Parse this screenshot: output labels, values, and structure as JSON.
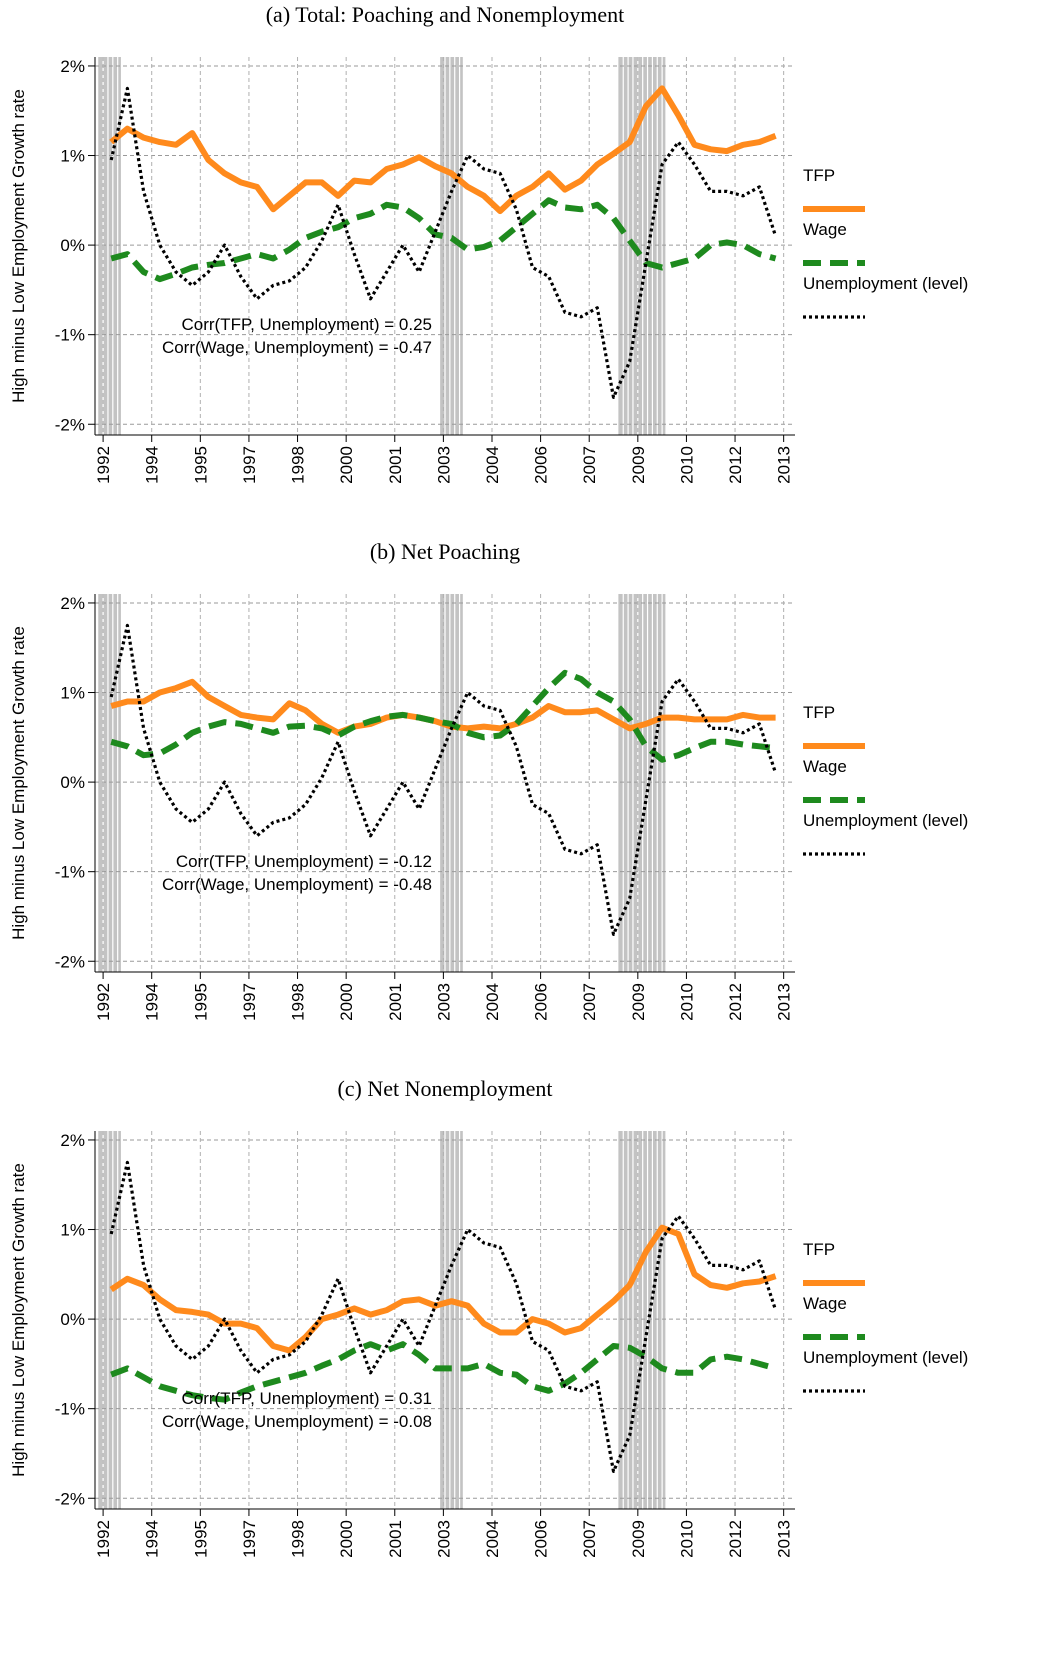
{
  "chart_data": [
    {
      "type": "line",
      "title": "(a) Total: Poaching and Nonemployment",
      "ylabel": "High minus Low Employment Growth rate",
      "x": [
        1992.25,
        1992.75,
        1993.25,
        1993.75,
        1994.25,
        1994.75,
        1995.25,
        1995.75,
        1996.25,
        1996.75,
        1997.25,
        1997.75,
        1998.25,
        1998.75,
        1999.25,
        1999.75,
        2000.25,
        2000.75,
        2001.25,
        2001.75,
        2002.25,
        2002.75,
        2003.25,
        2003.75,
        2004.25,
        2004.75,
        2005.25,
        2005.75,
        2006.25,
        2006.75,
        2007.25,
        2007.75,
        2008.25,
        2008.75,
        2009.25,
        2009.75,
        2010.25,
        2010.75,
        2011.25,
        2011.75,
        2012.25,
        2012.75
      ],
      "series": [
        {
          "name": "TFP",
          "color": "#ff8a1c",
          "style": "solid",
          "values": [
            1.15,
            1.3,
            1.2,
            1.15,
            1.12,
            1.25,
            0.95,
            0.8,
            0.7,
            0.65,
            0.4,
            0.55,
            0.7,
            0.7,
            0.55,
            0.72,
            0.7,
            0.85,
            0.9,
            0.98,
            0.88,
            0.8,
            0.65,
            0.55,
            0.38,
            0.55,
            0.65,
            0.8,
            0.62,
            0.72,
            0.9,
            1.02,
            1.15,
            1.55,
            1.75,
            1.45,
            1.12,
            1.07,
            1.05,
            1.12,
            1.15,
            1.22
          ]
        },
        {
          "name": "Wage",
          "color": "#1e8a1e",
          "style": "dashed",
          "values": [
            -0.15,
            -0.1,
            -0.3,
            -0.38,
            -0.32,
            -0.25,
            -0.22,
            -0.2,
            -0.15,
            -0.1,
            -0.15,
            -0.05,
            0.08,
            0.15,
            0.2,
            0.3,
            0.35,
            0.45,
            0.42,
            0.3,
            0.12,
            0.08,
            -0.05,
            -0.02,
            0.05,
            0.2,
            0.35,
            0.5,
            0.42,
            0.4,
            0.45,
            0.3,
            0.05,
            -0.2,
            -0.25,
            -0.2,
            -0.15,
            0.0,
            0.03,
            0.0,
            -0.1,
            -0.15
          ]
        },
        {
          "name": "Unemployment (level)",
          "color": "#000000",
          "style": "dotted",
          "values": [
            0.95,
            1.75,
            0.6,
            0.0,
            -0.3,
            -0.45,
            -0.3,
            0.0,
            -0.35,
            -0.6,
            -0.45,
            -0.4,
            -0.25,
            0.05,
            0.45,
            -0.1,
            -0.6,
            -0.3,
            0.0,
            -0.3,
            0.15,
            0.6,
            1.0,
            0.85,
            0.8,
            0.4,
            -0.25,
            -0.35,
            -0.75,
            -0.8,
            -0.7,
            -1.7,
            -1.3,
            -0.2,
            0.9,
            1.15,
            0.9,
            0.6,
            0.6,
            0.55,
            0.65,
            0.1
          ]
        }
      ],
      "annotations": [
        "Corr(TFP, Unemployment) = 0.25",
        "Corr(Wage, Unemployment) = -0.47"
      ],
      "shaded": [
        [
          1991.85,
          1992.55
        ],
        [
          2002.4,
          2003.1
        ],
        [
          2007.9,
          2009.35
        ]
      ],
      "xlim": [
        1991.75,
        2013.35
      ],
      "ylim": [
        -2.12,
        2.1
      ],
      "xticks": [
        1992,
        {
          "value": 1993.5,
          "label": "1994"
        },
        1995,
        {
          "value": 1996.5,
          "label": "1997"
        },
        1998,
        {
          "value": 1999.5,
          "label": "2000"
        },
        2001,
        {
          "value": 2002.5,
          "label": "2003"
        },
        2004,
        {
          "value": 2005.5,
          "label": "2006"
        },
        2007,
        {
          "value": 2008.5,
          "label": "2009"
        },
        2010,
        {
          "value": 2011.5,
          "label": "2012"
        },
        2013
      ],
      "yticks": [
        {
          "value": -2,
          "label": "-2%"
        },
        {
          "value": -1,
          "label": "-1%"
        },
        {
          "value": 0,
          "label": "0%"
        },
        {
          "value": 1,
          "label": "1%"
        },
        {
          "value": 2,
          "label": "2%"
        }
      ],
      "grid": true,
      "legend": "right"
    },
    {
      "type": "line",
      "title": "(b) Net Poaching",
      "ylabel": "High minus Low Employment Growth rate",
      "x": [
        1992.25,
        1992.75,
        1993.25,
        1993.75,
        1994.25,
        1994.75,
        1995.25,
        1995.75,
        1996.25,
        1996.75,
        1997.25,
        1997.75,
        1998.25,
        1998.75,
        1999.25,
        1999.75,
        2000.25,
        2000.75,
        2001.25,
        2001.75,
        2002.25,
        2002.75,
        2003.25,
        2003.75,
        2004.25,
        2004.75,
        2005.25,
        2005.75,
        2006.25,
        2006.75,
        2007.25,
        2007.75,
        2008.25,
        2008.75,
        2009.25,
        2009.75,
        2010.25,
        2010.75,
        2011.25,
        2011.75,
        2012.25,
        2012.75
      ],
      "series": [
        {
          "name": "TFP",
          "color": "#ff8a1c",
          "style": "solid",
          "values": [
            0.85,
            0.9,
            0.9,
            1.0,
            1.05,
            1.12,
            0.95,
            0.85,
            0.75,
            0.72,
            0.7,
            0.88,
            0.8,
            0.65,
            0.55,
            0.62,
            0.65,
            0.72,
            0.75,
            0.72,
            0.68,
            0.62,
            0.6,
            0.62,
            0.6,
            0.65,
            0.72,
            0.85,
            0.78,
            0.78,
            0.8,
            0.7,
            0.6,
            0.65,
            0.72,
            0.72,
            0.7,
            0.7,
            0.7,
            0.75,
            0.72,
            0.72
          ]
        },
        {
          "name": "Wage",
          "color": "#1e8a1e",
          "style": "dashed",
          "values": [
            0.45,
            0.4,
            0.3,
            0.32,
            0.42,
            0.55,
            0.62,
            0.67,
            0.65,
            0.6,
            0.55,
            0.62,
            0.63,
            0.6,
            0.52,
            0.62,
            0.68,
            0.73,
            0.75,
            0.72,
            0.68,
            0.65,
            0.55,
            0.5,
            0.52,
            0.65,
            0.85,
            1.05,
            1.22,
            1.15,
            1.0,
            0.9,
            0.7,
            0.4,
            0.25,
            0.3,
            0.38,
            0.45,
            0.45,
            0.42,
            0.4,
            0.38
          ]
        },
        {
          "name": "Unemployment (level)",
          "color": "#000000",
          "style": "dotted",
          "values": [
            0.95,
            1.75,
            0.6,
            0.0,
            -0.3,
            -0.45,
            -0.3,
            0.0,
            -0.35,
            -0.6,
            -0.45,
            -0.4,
            -0.25,
            0.05,
            0.45,
            -0.1,
            -0.6,
            -0.3,
            0.0,
            -0.3,
            0.15,
            0.6,
            1.0,
            0.85,
            0.8,
            0.4,
            -0.25,
            -0.35,
            -0.75,
            -0.8,
            -0.7,
            -1.7,
            -1.3,
            -0.2,
            0.9,
            1.15,
            0.9,
            0.6,
            0.6,
            0.55,
            0.65,
            0.1
          ]
        }
      ],
      "annotations": [
        "Corr(TFP, Unemployment) = -0.12",
        "Corr(Wage, Unemployment) = -0.48"
      ],
      "shaded": [
        [
          1991.85,
          1992.55
        ],
        [
          2002.4,
          2003.1
        ],
        [
          2007.9,
          2009.35
        ]
      ],
      "xlim": [
        1991.75,
        2013.35
      ],
      "ylim": [
        -2.12,
        2.1
      ],
      "xticks": [
        1992,
        {
          "value": 1993.5,
          "label": "1994"
        },
        1995,
        {
          "value": 1996.5,
          "label": "1997"
        },
        1998,
        {
          "value": 1999.5,
          "label": "2000"
        },
        2001,
        {
          "value": 2002.5,
          "label": "2003"
        },
        2004,
        {
          "value": 2005.5,
          "label": "2006"
        },
        2007,
        {
          "value": 2008.5,
          "label": "2009"
        },
        2010,
        {
          "value": 2011.5,
          "label": "2012"
        },
        2013
      ],
      "yticks": [
        {
          "value": -2,
          "label": "-2%"
        },
        {
          "value": -1,
          "label": "-1%"
        },
        {
          "value": 0,
          "label": "0%"
        },
        {
          "value": 1,
          "label": "1%"
        },
        {
          "value": 2,
          "label": "2%"
        }
      ],
      "grid": true,
      "legend": "right"
    },
    {
      "type": "line",
      "title": "(c) Net Nonemployment",
      "ylabel": "High minus Low Employment Growth rate",
      "x": [
        1992.25,
        1992.75,
        1993.25,
        1993.75,
        1994.25,
        1994.75,
        1995.25,
        1995.75,
        1996.25,
        1996.75,
        1997.25,
        1997.75,
        1998.25,
        1998.75,
        1999.25,
        1999.75,
        2000.25,
        2000.75,
        2001.25,
        2001.75,
        2002.25,
        2002.75,
        2003.25,
        2003.75,
        2004.25,
        2004.75,
        2005.25,
        2005.75,
        2006.25,
        2006.75,
        2007.25,
        2007.75,
        2008.25,
        2008.75,
        2009.25,
        2009.75,
        2010.25,
        2010.75,
        2011.25,
        2011.75,
        2012.25,
        2012.75
      ],
      "series": [
        {
          "name": "TFP",
          "color": "#ff8a1c",
          "style": "solid",
          "values": [
            0.33,
            0.45,
            0.38,
            0.22,
            0.1,
            0.08,
            0.05,
            -0.05,
            -0.05,
            -0.1,
            -0.3,
            -0.35,
            -0.2,
            0.0,
            0.05,
            0.12,
            0.05,
            0.1,
            0.2,
            0.22,
            0.15,
            0.2,
            0.15,
            -0.05,
            -0.15,
            -0.15,
            0.0,
            -0.05,
            -0.15,
            -0.1,
            0.05,
            0.2,
            0.38,
            0.75,
            1.02,
            0.95,
            0.5,
            0.38,
            0.35,
            0.4,
            0.42,
            0.48
          ]
        },
        {
          "name": "Wage",
          "color": "#1e8a1e",
          "style": "dashed",
          "values": [
            -0.62,
            -0.55,
            -0.65,
            -0.75,
            -0.8,
            -0.85,
            -0.88,
            -0.9,
            -0.82,
            -0.75,
            -0.7,
            -0.65,
            -0.6,
            -0.52,
            -0.45,
            -0.35,
            -0.28,
            -0.35,
            -0.28,
            -0.4,
            -0.55,
            -0.55,
            -0.55,
            -0.5,
            -0.6,
            -0.62,
            -0.75,
            -0.8,
            -0.72,
            -0.6,
            -0.45,
            -0.3,
            -0.32,
            -0.42,
            -0.55,
            -0.6,
            -0.6,
            -0.45,
            -0.42,
            -0.45,
            -0.5,
            -0.55
          ]
        },
        {
          "name": "Unemployment (level)",
          "color": "#000000",
          "style": "dotted",
          "values": [
            0.95,
            1.75,
            0.6,
            0.0,
            -0.3,
            -0.45,
            -0.3,
            0.0,
            -0.35,
            -0.6,
            -0.45,
            -0.4,
            -0.25,
            0.05,
            0.45,
            -0.1,
            -0.6,
            -0.3,
            0.0,
            -0.3,
            0.15,
            0.6,
            1.0,
            0.85,
            0.8,
            0.4,
            -0.25,
            -0.35,
            -0.75,
            -0.8,
            -0.7,
            -1.7,
            -1.3,
            -0.2,
            0.9,
            1.15,
            0.9,
            0.6,
            0.6,
            0.55,
            0.65,
            0.1
          ]
        }
      ],
      "annotations": [
        "Corr(TFP, Unemployment) = 0.31",
        "Corr(Wage, Unemployment) = -0.08"
      ],
      "shaded": [
        [
          1991.85,
          1992.55
        ],
        [
          2002.4,
          2003.1
        ],
        [
          2007.9,
          2009.35
        ]
      ],
      "xlim": [
        1991.75,
        2013.35
      ],
      "ylim": [
        -2.12,
        2.1
      ],
      "xticks": [
        1992,
        {
          "value": 1993.5,
          "label": "1994"
        },
        1995,
        {
          "value": 1996.5,
          "label": "1997"
        },
        1998,
        {
          "value": 1999.5,
          "label": "2000"
        },
        2001,
        {
          "value": 2002.5,
          "label": "2003"
        },
        2004,
        {
          "value": 2005.5,
          "label": "2006"
        },
        2007,
        {
          "value": 2008.5,
          "label": "2009"
        },
        2010,
        {
          "value": 2011.5,
          "label": "2012"
        },
        2013
      ],
      "yticks": [
        {
          "value": -2,
          "label": "-2%"
        },
        {
          "value": -1,
          "label": "-1%"
        },
        {
          "value": 0,
          "label": "0%"
        },
        {
          "value": 1,
          "label": "1%"
        },
        {
          "value": 2,
          "label": "2%"
        }
      ],
      "grid": true,
      "legend": "right"
    }
  ]
}
